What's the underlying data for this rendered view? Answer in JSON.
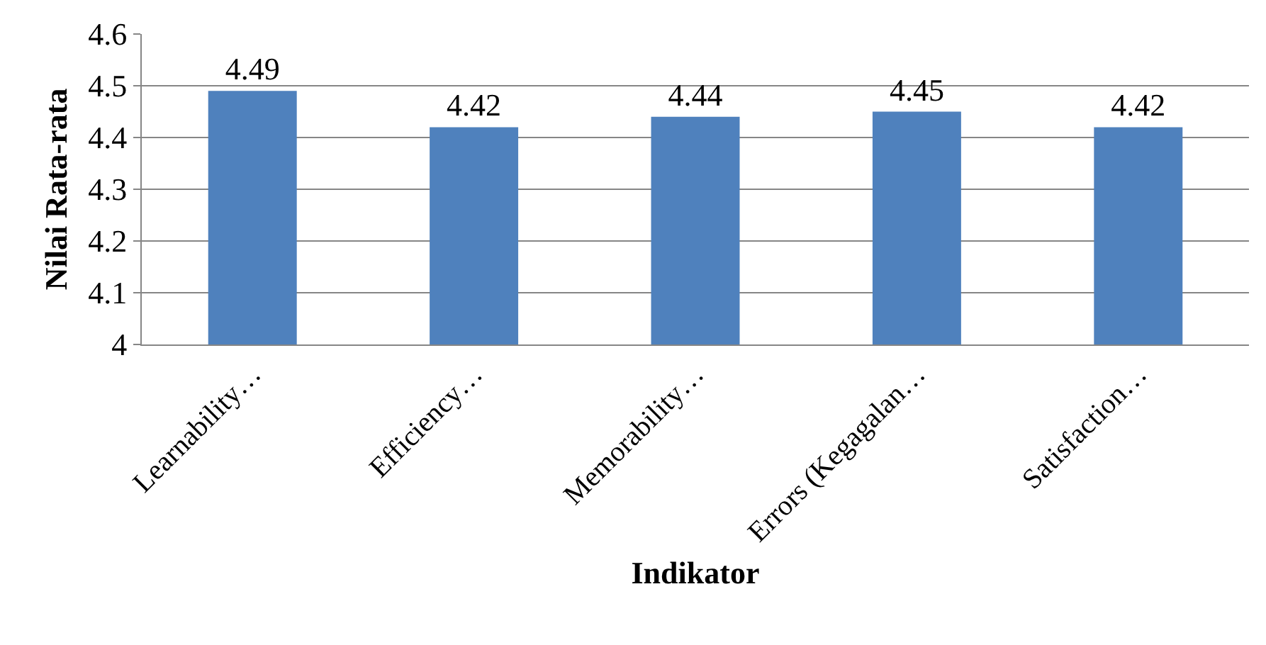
{
  "chart_data": {
    "type": "bar",
    "xlabel": "Indikator",
    "ylabel": "Nilai Rata-rata",
    "categories": [
      "Learnability…",
      "Efficiency…",
      "Memorability…",
      "Errors (Kegagalan…",
      "Satisfaction…"
    ],
    "values": [
      4.49,
      4.42,
      4.44,
      4.45,
      4.42
    ],
    "color": "#4f81bd",
    "ylim": [
      4,
      4.6
    ],
    "yticks": [
      4,
      4.1,
      4.2,
      4.3,
      4.4,
      4.5,
      4.6
    ],
    "grid": "y",
    "data_labels": true
  }
}
